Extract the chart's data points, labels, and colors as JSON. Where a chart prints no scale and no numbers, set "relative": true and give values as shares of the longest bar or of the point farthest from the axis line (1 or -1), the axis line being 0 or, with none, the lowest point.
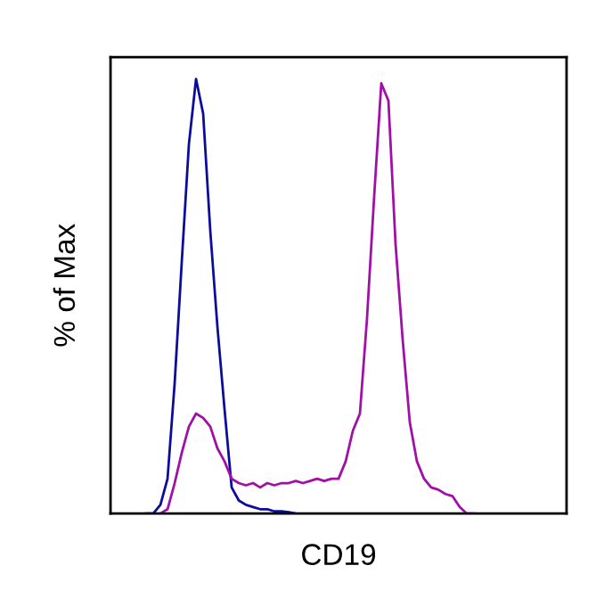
{
  "chart_data": {
    "type": "line",
    "relative": true,
    "xlabel": "CD19",
    "ylabel": "% of Max",
    "tick_labels": false,
    "grid": false,
    "legend": false,
    "marker": "none",
    "line_style": "solid",
    "categories": [
      null,
      null,
      null,
      null,
      null,
      null,
      null,
      null,
      null,
      null,
      null,
      null,
      null,
      null,
      null,
      null,
      null,
      null,
      null,
      null,
      null,
      null,
      null,
      null,
      null,
      null,
      null,
      null,
      null,
      null,
      null,
      null,
      null,
      null,
      null,
      null,
      null,
      null,
      null,
      null,
      null,
      null,
      null,
      null,
      null,
      null,
      null,
      null,
      null,
      null,
      null,
      null,
      null,
      null,
      null,
      null,
      null,
      null,
      null,
      null,
      null,
      null,
      null,
      null,
      null
    ],
    "series": [
      {
        "color": "#0c0c9c",
        "values": [
          null,
          null,
          null,
          null,
          null,
          0,
          0,
          0.02,
          0.08,
          0.3,
          0.58,
          0.85,
          1,
          0.92,
          0.65,
          0.43,
          0.24,
          0.06,
          0.03,
          0.02,
          0.015,
          0.01,
          0.01,
          0.005,
          0.005,
          0.003,
          0,
          null,
          null,
          null,
          null,
          null,
          null,
          null,
          null,
          null,
          null,
          null,
          null,
          null,
          null,
          null,
          null,
          null,
          null,
          null,
          null,
          null,
          null,
          null,
          null,
          null,
          null,
          null,
          null,
          null,
          null,
          null,
          null,
          null,
          null,
          null,
          null,
          null,
          null
        ]
      },
      {
        "color": "#a010a8",
        "values": [
          null,
          null,
          null,
          null,
          null,
          null,
          null,
          0,
          0.01,
          0.07,
          0.14,
          0.2,
          0.23,
          0.22,
          0.2,
          0.15,
          0.12,
          0.08,
          0.07,
          0.065,
          0.07,
          0.06,
          0.07,
          0.065,
          0.07,
          0.07,
          0.075,
          0.07,
          0.075,
          0.08,
          0.075,
          0.08,
          0.08,
          0.12,
          0.19,
          0.23,
          0.45,
          0.73,
          0.99,
          0.95,
          0.62,
          0.4,
          0.21,
          0.12,
          0.08,
          0.06,
          0.055,
          0.045,
          0.04,
          0.015,
          0,
          0,
          null,
          null,
          null,
          null,
          null,
          null,
          null,
          null,
          null,
          null,
          null,
          null,
          null
        ]
      }
    ]
  }
}
